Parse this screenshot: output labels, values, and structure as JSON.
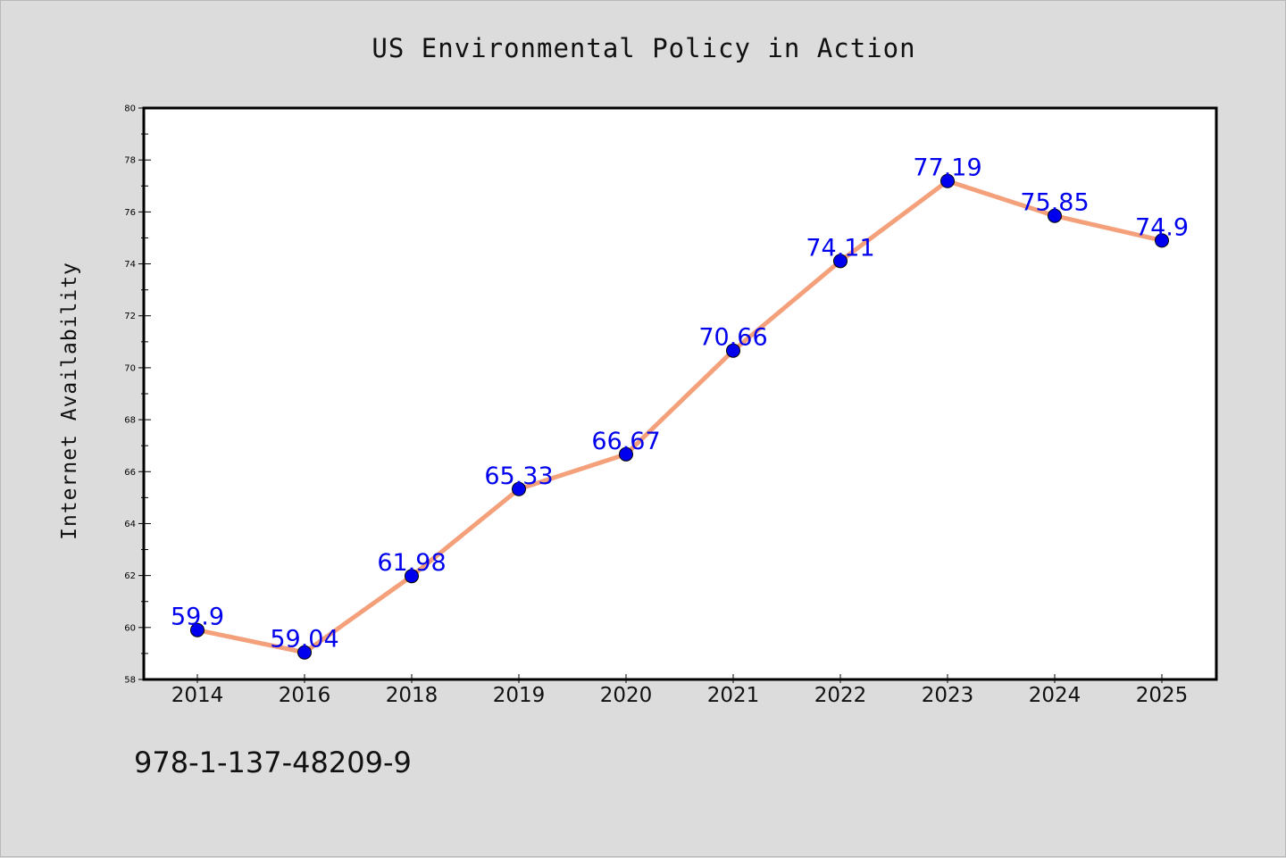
{
  "chart_data": {
    "type": "line",
    "title": "US Environmental Policy in Action",
    "ylabel": "Internet Availability",
    "xlabel": "",
    "categories": [
      "2014",
      "2016",
      "2018",
      "2019",
      "2020",
      "2021",
      "2022",
      "2023",
      "2024",
      "2025"
    ],
    "values": [
      59.9,
      59.04,
      61.98,
      65.33,
      66.67,
      70.66,
      74.11,
      77.19,
      75.85,
      74.9
    ],
    "value_labels": [
      "59.9",
      "59.04",
      "61.98",
      "65.33",
      "66.67",
      "70.66",
      "74.11",
      "77.19",
      "75.85",
      "74.9"
    ],
    "ylim": [
      58,
      80
    ],
    "yticks": [
      58,
      60,
      62,
      64,
      66,
      68,
      70,
      72,
      74,
      76,
      78,
      80
    ],
    "grid": false,
    "line_color": "#f4a07a",
    "marker_color": "#0000ee",
    "label_color": "#0000ee"
  },
  "footer_code": "978-1-137-48209-9"
}
